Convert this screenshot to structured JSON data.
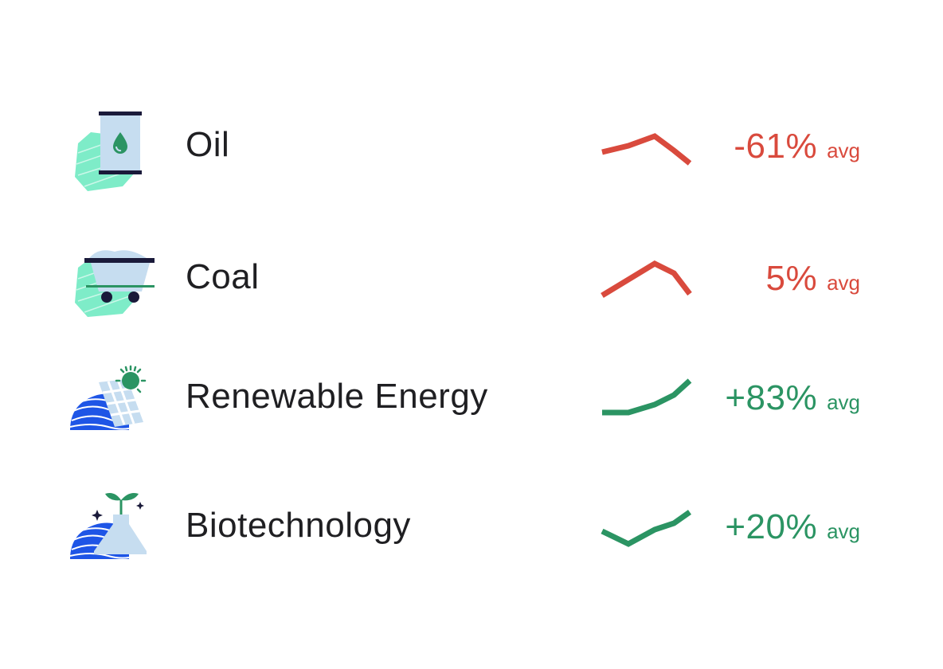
{
  "colors": {
    "negative": "#d94a3d",
    "positive": "#2b9463",
    "text": "#1f1f22"
  },
  "sectors": [
    {
      "name": "Oil",
      "icon": "oil-barrel-icon",
      "change": "-61%",
      "suffix": "avg",
      "trend": "negative",
      "sparkline": [
        0.35,
        0.55,
        0.85,
        0.4,
        0.0
      ]
    },
    {
      "name": "Coal",
      "icon": "coal-cart-icon",
      "change": "5%",
      "suffix": "avg",
      "trend": "negative",
      "sparkline": [
        0.0,
        0.5,
        1.0,
        0.7,
        0.05
      ]
    },
    {
      "name": "Renewable Energy",
      "icon": "solar-panel-icon",
      "change": "+83%",
      "suffix": "avg",
      "trend": "positive",
      "sparkline": [
        0.0,
        0.0,
        0.25,
        0.55,
        1.0
      ]
    },
    {
      "name": "Biotechnology",
      "icon": "plant-flask-icon",
      "change": "+20%",
      "suffix": "avg",
      "trend": "positive",
      "sparkline": [
        0.4,
        0.0,
        0.45,
        0.65,
        1.0
      ]
    }
  ]
}
